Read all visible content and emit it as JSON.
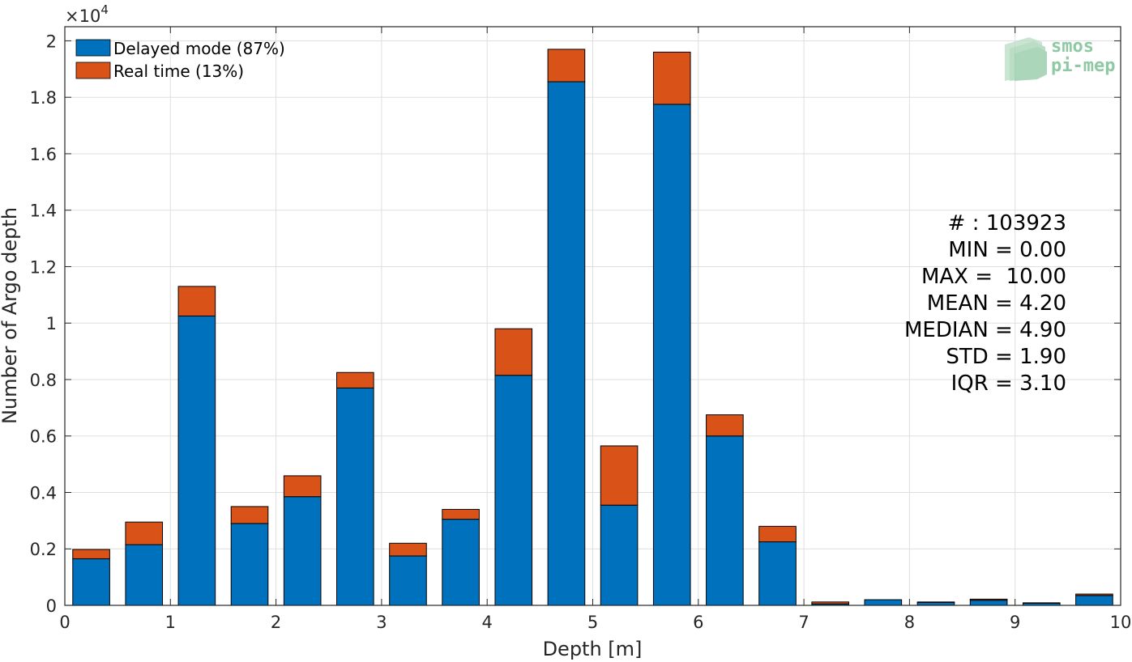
{
  "chart_data": {
    "type": "bar",
    "stacked": true,
    "xlabel": "Depth [m]",
    "ylabel": "Number of Argo depth",
    "xlim": [
      0,
      10
    ],
    "ylim": [
      0,
      20500
    ],
    "xticks": [
      "0",
      "1",
      "2",
      "3",
      "4",
      "5",
      "6",
      "7",
      "8",
      "9",
      "10"
    ],
    "yticks": [
      "0",
      "0.2",
      "0.4",
      "0.6",
      "0.8",
      "1",
      "1.2",
      "1.4",
      "1.6",
      "1.8",
      "2"
    ],
    "yscale_label": "×10",
    "yscale_exponent": "4",
    "grid": true,
    "bin_width": 0.5,
    "x": [
      0.25,
      0.75,
      1.25,
      1.75,
      2.25,
      2.75,
      3.25,
      3.75,
      4.25,
      4.75,
      5.25,
      5.75,
      6.25,
      6.75,
      7.25,
      7.75,
      8.25,
      8.75,
      9.25,
      9.75
    ],
    "series": [
      {
        "name": "Delayed mode (87%)",
        "color": "#0072bd",
        "values": [
          1650,
          2150,
          10250,
          2900,
          3850,
          7700,
          1750,
          3050,
          8150,
          18550,
          3550,
          17750,
          6000,
          2250,
          50,
          200,
          100,
          180,
          80,
          350
        ]
      },
      {
        "name": "Real time (13%)",
        "color": "#d95319",
        "values": [
          330,
          800,
          1050,
          600,
          740,
          550,
          450,
          350,
          1650,
          1150,
          2100,
          1850,
          750,
          550,
          70,
          0,
          20,
          40,
          10,
          50
        ]
      }
    ],
    "legend_position": "top-left",
    "stats": [
      "# : 103923",
      "MIN = 0.00",
      "MAX =  10.00",
      "MEAN = 4.20",
      "MEDIAN = 4.90",
      "STD = 1.90",
      "IQR = 3.10"
    ]
  },
  "logo": {
    "line1": "smos",
    "line2": "pi-mep"
  }
}
